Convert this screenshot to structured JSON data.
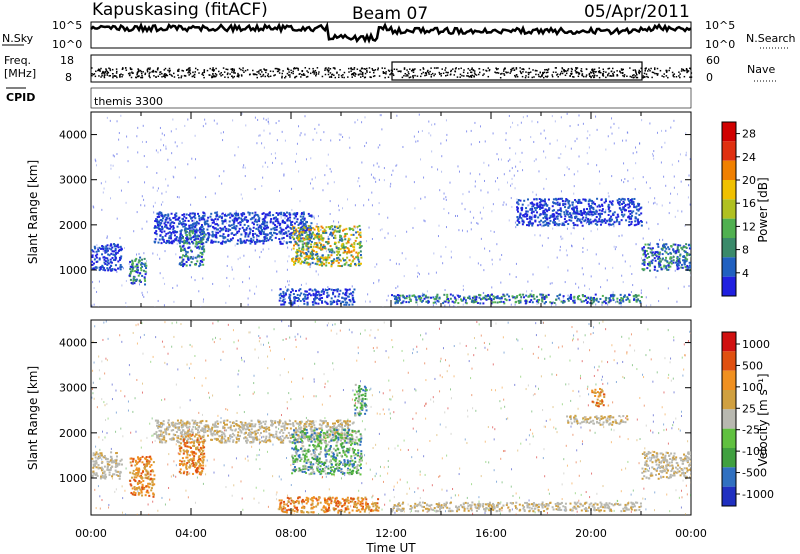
{
  "header": {
    "station": "Kapuskasing (fitACF)",
    "beam": "Beam 07",
    "date": "05/Apr/2011"
  },
  "noise_panel": {
    "left_label": "N.Sky",
    "right_label": "N.Search",
    "ticks_left": [
      "10^5",
      "10^0"
    ],
    "ticks_right": [
      "10^5",
      "10^0"
    ]
  },
  "freq_panel": {
    "left_label_line1": "Freq.",
    "left_label_line2": "[MHz]",
    "right_label": "Nave",
    "ticks_left": [
      "18",
      "8"
    ],
    "ticks_right": [
      "60",
      "0"
    ]
  },
  "cpid": {
    "label": "CPID",
    "value": "themis 3300"
  },
  "colors": {
    "power": [
      "#2020e0",
      "#2060c0",
      "#3a8a6a",
      "#50b050",
      "#b0c020",
      "#f0c000",
      "#f08000",
      "#e03010",
      "#d00000"
    ],
    "velocity": [
      "#2030c0",
      "#3070c0",
      "#40a040",
      "#60c040",
      "#b8b8b0",
      "#d0a040",
      "#f09020",
      "#e05010",
      "#d01010"
    ]
  },
  "chart_data": [
    {
      "type": "heatmap",
      "parameter": "Power",
      "ylabel": "Slant Range [km]",
      "ylim": [
        180,
        4500
      ],
      "yticks": [
        "1000",
        "2000",
        "3000",
        "4000"
      ],
      "xlabel": "Time UT",
      "xlim": [
        0,
        24
      ],
      "xticks": [
        "00:00",
        "04:00",
        "08:00",
        "12:00",
        "16:00",
        "20:00",
        "00:00"
      ],
      "colorbar": {
        "label": "Power [dB]",
        "ticks": [
          "28",
          "24",
          "20",
          "16",
          "12",
          "8",
          "4"
        ],
        "range": [
          0,
          30
        ]
      },
      "regions": [
        {
          "t0": 0.0,
          "t1": 1.2,
          "r0": 1000,
          "r1": 1600,
          "level": "low"
        },
        {
          "t0": 1.5,
          "t1": 2.2,
          "r0": 700,
          "r1": 1300,
          "level": "mid"
        },
        {
          "t0": 2.5,
          "t1": 8.8,
          "r0": 1600,
          "r1": 2300,
          "level": "low"
        },
        {
          "t0": 3.5,
          "t1": 4.5,
          "r0": 1100,
          "r1": 1900,
          "level": "mid"
        },
        {
          "t0": 8.0,
          "t1": 10.8,
          "r0": 1100,
          "r1": 2000,
          "level": "high"
        },
        {
          "t0": 7.5,
          "t1": 10.5,
          "r0": 250,
          "r1": 600,
          "level": "low"
        },
        {
          "t0": 12.0,
          "t1": 22.0,
          "r0": 280,
          "r1": 480,
          "level": "mid"
        },
        {
          "t0": 17.0,
          "t1": 22.0,
          "r0": 2000,
          "r1": 2600,
          "level": "low"
        },
        {
          "t0": 22.0,
          "t1": 24.0,
          "r0": 1000,
          "r1": 1600,
          "level": "mid"
        }
      ]
    },
    {
      "type": "heatmap",
      "parameter": "Velocity",
      "ylabel": "Slant Range [km]",
      "ylim": [
        180,
        4500
      ],
      "yticks": [
        "1000",
        "2000",
        "3000",
        "4000"
      ],
      "xlabel": "Time UT",
      "xlim": [
        0,
        24
      ],
      "xticks": [
        "00:00",
        "04:00",
        "08:00",
        "12:00",
        "16:00",
        "20:00",
        "00:00"
      ],
      "colorbar": {
        "label": "Velocity [m s⁻¹]",
        "ticks": [
          "1000",
          "500",
          "100",
          "25",
          "-25",
          "-100",
          "-500",
          "-1000"
        ]
      },
      "regions": [
        {
          "t0": 0.0,
          "t1": 1.2,
          "r0": 1000,
          "r1": 1600,
          "level": "ground"
        },
        {
          "t0": 1.5,
          "t1": 2.5,
          "r0": 600,
          "r1": 1500,
          "level": "neg"
        },
        {
          "t0": 2.5,
          "t1": 10.5,
          "r0": 1800,
          "r1": 2300,
          "level": "ground"
        },
        {
          "t0": 3.5,
          "t1": 4.5,
          "r0": 1100,
          "r1": 2000,
          "level": "neg"
        },
        {
          "t0": 8.0,
          "t1": 10.8,
          "r0": 1100,
          "r1": 2100,
          "level": "pos"
        },
        {
          "t0": 10.5,
          "t1": 11.0,
          "r0": 2400,
          "r1": 3100,
          "level": "pos"
        },
        {
          "t0": 7.5,
          "t1": 11.5,
          "r0": 250,
          "r1": 600,
          "level": "neg"
        },
        {
          "t0": 12.0,
          "t1": 22.0,
          "r0": 280,
          "r1": 480,
          "level": "ground"
        },
        {
          "t0": 19.0,
          "t1": 21.5,
          "r0": 2200,
          "r1": 2400,
          "level": "ground"
        },
        {
          "t0": 20.0,
          "t1": 20.5,
          "r0": 2600,
          "r1": 3000,
          "level": "neg"
        },
        {
          "t0": 22.0,
          "t1": 24.0,
          "r0": 1000,
          "r1": 1600,
          "level": "ground"
        }
      ]
    }
  ]
}
